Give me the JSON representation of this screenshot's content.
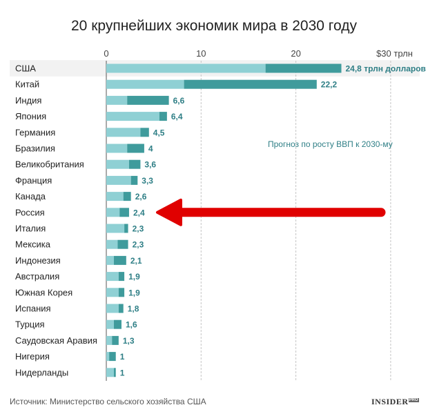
{
  "chart_data": {
    "type": "bar",
    "orientation": "horizontal",
    "stacked": true,
    "title": "20 крупнейших экономик мира в 2030 году",
    "x_ticks": [
      "0",
      "10",
      "20",
      "$30 трлн"
    ],
    "x_tick_values": [
      0,
      10,
      20,
      30
    ],
    "xlim": [
      0,
      30
    ],
    "categories": [
      "США",
      "Китай",
      "Индия",
      "Япония",
      "Германия",
      "Бразилия",
      "Великобритания",
      "Франция",
      "Канада",
      "Россия",
      "Италия",
      "Мексика",
      "Индонезия",
      "Австралия",
      "Южная Корея",
      "Испания",
      "Турция",
      "Саудовская Аравия",
      "Нигерия",
      "Нидерланды"
    ],
    "total_labels": [
      "24,8 трлн долларов",
      "22,2",
      "6,6",
      "6,4",
      "4,5",
      "4",
      "3,6",
      "3,3",
      "2,6",
      "2,4",
      "2,3",
      "2,3",
      "2,1",
      "1,9",
      "1,9",
      "1,8",
      "1,6",
      "1,3",
      "1",
      "1"
    ],
    "series": [
      {
        "values": [
          16.8,
          8.2,
          2.2,
          5.6,
          3.6,
          2.2,
          2.4,
          2.6,
          1.8,
          1.4,
          1.9,
          1.2,
          0.8,
          1.3,
          1.3,
          1.3,
          0.8,
          0.6,
          0.3,
          0.8
        ]
      },
      {
        "name": "Прогноз по росту ВВП к 2030-му",
        "values": [
          8.0,
          14.0,
          4.4,
          0.8,
          0.9,
          1.8,
          1.2,
          0.7,
          0.8,
          1.0,
          0.4,
          1.1,
          1.3,
          0.6,
          0.6,
          0.5,
          0.8,
          0.7,
          0.7,
          0.2
        ]
      }
    ],
    "totals": [
      24.8,
      22.2,
      6.6,
      6.4,
      4.5,
      4.0,
      3.6,
      3.3,
      2.6,
      2.4,
      2.3,
      2.3,
      2.1,
      1.9,
      1.9,
      1.8,
      1.6,
      1.3,
      1.0,
      1.0
    ],
    "annotation": "Прогноз по росту ВВП к 2030-му",
    "highlight": {
      "category": "Россия",
      "marker": "red-arrow"
    },
    "colors": {
      "base": "#8fd0d4",
      "growth": "#3f9b9c",
      "label": "#2f7f86",
      "row_band": "#f2f2f2",
      "arrow": "#e00000"
    }
  },
  "footer": {
    "source": "Источник: Министерство сельского хозяйства США",
    "brand": "INSIDER",
    "brand_suffix": "PRO"
  }
}
